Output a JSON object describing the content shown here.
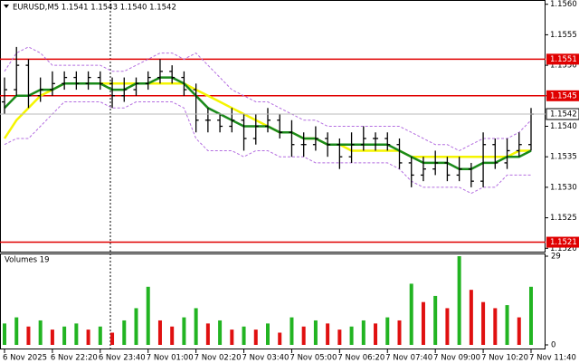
{
  "chart_data": {
    "type": "candlestick",
    "title": "EURUSD,M5  1.1541 1.1543 1.1540 1.1542",
    "categories": [
      "6 Nov 2025",
      null,
      null,
      null,
      "6 Nov 22:20",
      null,
      null,
      null,
      "6 Nov 23:40",
      null,
      null,
      null,
      "7 Nov 01:00",
      null,
      null,
      null,
      "7 Nov 02:20",
      null,
      null,
      null,
      "7 Nov 03:40",
      null,
      null,
      null,
      "7 Nov 05:00",
      null,
      null,
      null,
      "7 Nov 06:20",
      null,
      null,
      null,
      "7 Nov 07:40",
      null,
      null,
      null,
      "7 Nov 09:00",
      null,
      null,
      null,
      "7 Nov 10:20",
      null,
      null,
      null,
      "7 Nov 11:40"
    ],
    "open": [
      1.1544,
      1.1546,
      1.155,
      1.1545,
      1.1546,
      1.1547,
      1.1548,
      1.1547,
      1.1548,
      1.1547,
      1.1545,
      1.1546,
      1.1547,
      1.1548,
      1.1549,
      1.1548,
      1.1546,
      1.1541,
      1.1541,
      1.154,
      1.1541,
      1.1538,
      1.154,
      1.1541,
      1.1539,
      1.1537,
      1.1537,
      1.1538,
      1.1537,
      1.1535,
      1.1537,
      1.1538,
      1.1538,
      1.1537,
      1.1534,
      1.1532,
      1.1533,
      1.1534,
      1.1532,
      1.1533,
      1.1531,
      1.1537,
      1.1534,
      1.1536,
      1.1537
    ],
    "high": [
      1.1548,
      1.1553,
      1.1551,
      1.1548,
      1.1549,
      1.1549,
      1.1549,
      1.1549,
      1.1549,
      1.1548,
      1.1548,
      1.1548,
      1.1549,
      1.1551,
      1.155,
      1.1549,
      1.1547,
      1.1543,
      1.1542,
      1.1543,
      1.1542,
      1.1542,
      1.1543,
      1.1542,
      1.1541,
      1.1539,
      1.154,
      1.1539,
      1.1538,
      1.1539,
      1.154,
      1.1539,
      1.1539,
      1.1538,
      1.1535,
      1.1535,
      1.1536,
      1.1535,
      1.1535,
      1.1534,
      1.1539,
      1.1538,
      1.1538,
      1.1539,
      1.1543
    ],
    "low": [
      1.1542,
      1.1545,
      1.1543,
      1.1544,
      1.1545,
      1.1546,
      1.1546,
      1.1546,
      1.1546,
      1.1543,
      1.1544,
      1.1545,
      1.1546,
      1.1547,
      1.1547,
      1.1545,
      1.1539,
      1.1539,
      1.1539,
      1.1539,
      1.1536,
      1.1537,
      1.1539,
      1.1538,
      1.1535,
      1.1535,
      1.1536,
      1.1535,
      1.1533,
      1.1534,
      1.1536,
      1.1536,
      1.1536,
      1.1533,
      1.153,
      1.1531,
      1.1532,
      1.1531,
      1.1531,
      1.153,
      1.153,
      1.1533,
      1.1533,
      1.1535,
      1.1536
    ],
    "close": [
      1.1546,
      1.155,
      1.1545,
      1.1546,
      1.1547,
      1.1548,
      1.1547,
      1.1548,
      1.1547,
      1.1545,
      1.1546,
      1.1547,
      1.1548,
      1.1549,
      1.1548,
      1.1546,
      1.1541,
      1.1541,
      1.154,
      1.1541,
      1.1538,
      1.154,
      1.1541,
      1.1539,
      1.1537,
      1.1537,
      1.1538,
      1.1537,
      1.1535,
      1.1537,
      1.1538,
      1.1538,
      1.1537,
      1.1534,
      1.1532,
      1.1533,
      1.1534,
      1.1532,
      1.1533,
      1.1531,
      1.1537,
      1.1534,
      1.1536,
      1.1537,
      1.1542
    ],
    "candle_color": "#000000",
    "lines": [
      {
        "color": "#f5f500",
        "style": "solid",
        "values": [
          1.1538,
          1.1541,
          1.1543,
          1.1545,
          1.1546,
          1.1547,
          1.1547,
          1.1547,
          1.1547,
          1.1547,
          1.1547,
          1.1547,
          1.1547,
          1.1547,
          1.1547,
          1.1547,
          1.1546,
          1.1545,
          1.1544,
          1.1543,
          1.1542,
          1.1541,
          1.154,
          1.1539,
          1.1539,
          1.1538,
          1.1538,
          1.1537,
          1.1537,
          1.1536,
          1.1536,
          1.1536,
          1.1536,
          1.1536,
          1.1535,
          1.1535,
          1.1535,
          1.1535,
          1.1535,
          1.1535,
          1.1535,
          1.1535,
          1.1535,
          1.1536,
          1.1536
        ]
      },
      {
        "color": "#1a8a1a",
        "style": "solid",
        "values": [
          1.1543,
          1.1545,
          1.1545,
          1.1546,
          1.1546,
          1.1547,
          1.1547,
          1.1547,
          1.1547,
          1.1546,
          1.1546,
          1.1547,
          1.1547,
          1.1548,
          1.1548,
          1.1547,
          1.1545,
          1.1543,
          1.1542,
          1.1541,
          1.154,
          1.154,
          1.154,
          1.1539,
          1.1539,
          1.1538,
          1.1538,
          1.1537,
          1.1537,
          1.1537,
          1.1537,
          1.1537,
          1.1537,
          1.1536,
          1.1535,
          1.1534,
          1.1534,
          1.1534,
          1.1533,
          1.1533,
          1.1534,
          1.1534,
          1.1535,
          1.1535,
          1.1536
        ]
      },
      {
        "color": "#b46ee0",
        "style": "dashed",
        "values": [
          1.1549,
          1.1552,
          1.1553,
          1.1552,
          1.155,
          1.155,
          1.155,
          1.155,
          1.155,
          1.1549,
          1.1549,
          1.155,
          1.1551,
          1.1552,
          1.1552,
          1.1551,
          1.1552,
          1.155,
          1.1548,
          1.1546,
          1.1545,
          1.1544,
          1.1544,
          1.1543,
          1.1542,
          1.1541,
          1.1541,
          1.154,
          1.154,
          1.154,
          1.154,
          1.154,
          1.154,
          1.154,
          1.1539,
          1.1538,
          1.1537,
          1.1537,
          1.1536,
          1.1537,
          1.1538,
          1.1538,
          1.1538,
          1.1539,
          1.1541
        ]
      },
      {
        "color": "#b46ee0",
        "style": "dashed",
        "values": [
          1.1537,
          1.1538,
          1.1538,
          1.154,
          1.1542,
          1.1544,
          1.1544,
          1.1544,
          1.1544,
          1.1543,
          1.1543,
          1.1544,
          1.1544,
          1.1544,
          1.1544,
          1.1543,
          1.1538,
          1.1536,
          1.1536,
          1.1536,
          1.1535,
          1.1536,
          1.1536,
          1.1535,
          1.1535,
          1.1535,
          1.1534,
          1.1534,
          1.1534,
          1.1534,
          1.1534,
          1.1534,
          1.1534,
          1.1533,
          1.1531,
          1.153,
          1.153,
          1.153,
          1.153,
          1.1529,
          1.153,
          1.153,
          1.1532,
          1.1532,
          1.1532
        ]
      }
    ],
    "ylim": [
      1.15193,
      1.15607
    ],
    "yticks": [
      {
        "value": 1.156,
        "label": "1.1560"
      },
      1.1555,
      {
        "value": 1.155,
        "label": "1.1550"
      },
      1.1545,
      {
        "value": 1.154,
        "label": "1.1540"
      },
      1.1535,
      {
        "value": 1.153,
        "label": "1.1530"
      },
      1.1525,
      {
        "value": 1.152,
        "label": "1.1520"
      }
    ],
    "levels": [
      1.1551,
      1.1545,
      1.1521
    ],
    "level_color": "#e00000",
    "last_price": 1.1542,
    "volume_title": "Volumes 19",
    "volumes": [
      7,
      9,
      6,
      8,
      5,
      6,
      7,
      5,
      6,
      4,
      8,
      12,
      19,
      8,
      6,
      9,
      12,
      7,
      8,
      5,
      6,
      5,
      7,
      4,
      9,
      6,
      8,
      7,
      5,
      6,
      8,
      7,
      9,
      8,
      20,
      14,
      16,
      12,
      29,
      18,
      14,
      12,
      13,
      9,
      19
    ],
    "volume_up_color": "#22b422",
    "volume_down_color": "#e01010",
    "vlim": [
      0,
      29
    ],
    "vticks": [
      0,
      29
    ]
  }
}
